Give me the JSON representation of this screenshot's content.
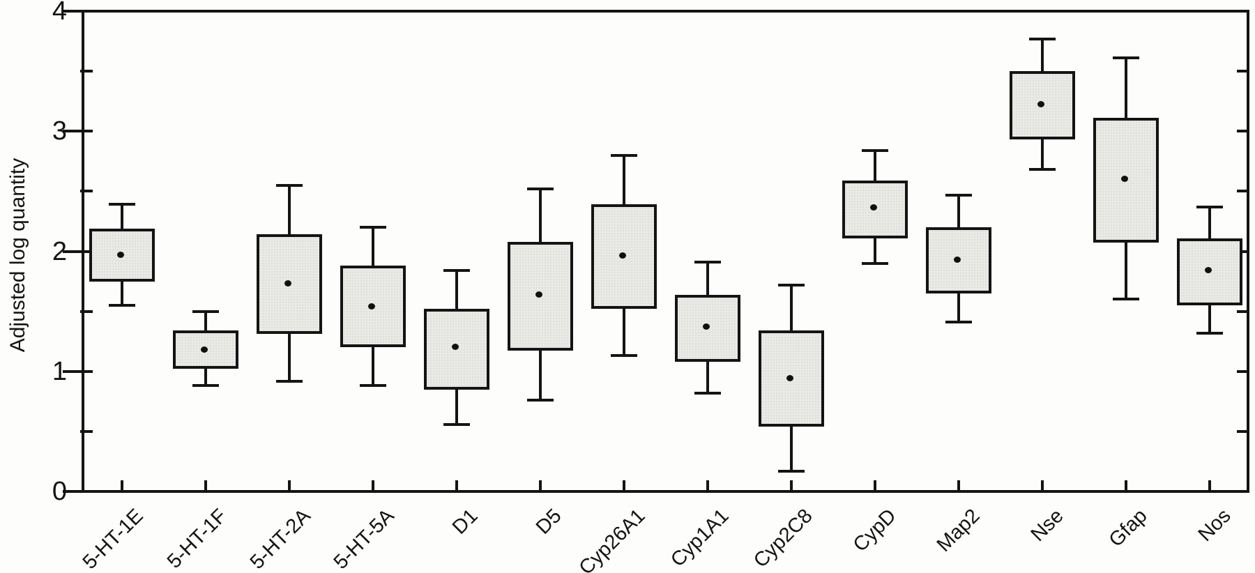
{
  "figure": {
    "background_color": "#fdfdfb",
    "line_color": "#141414",
    "box_fill_color": "#e9e9e6"
  },
  "chart_data": {
    "type": "box",
    "title": "",
    "xlabel": "",
    "ylabel": "Adjusted log quantity",
    "ylim": [
      0,
      4
    ],
    "grid": false,
    "frame": true,
    "y_major_ticks": [
      0,
      1,
      2,
      3,
      4
    ],
    "y_major_tick_labels": [
      "0",
      "1",
      "2",
      "3",
      "4"
    ],
    "y_minor_ticks": [
      0.5,
      1.5,
      2.5,
      3.5
    ],
    "right_axis_ticks": [
      0.5,
      1.0,
      1.5,
      2.0,
      2.5,
      3.0,
      3.5
    ],
    "marker_meaning": "mean-dot",
    "categories": [
      "5-HT-1E",
      "5-HT-1F",
      "5-HT-2A",
      "5-HT-5A",
      "D1",
      "D5",
      "Cyp26A1",
      "Cyp1A1",
      "Cyp2C8",
      "CypD",
      "Map2",
      "Nse",
      "Gfap",
      "Nos"
    ],
    "series": [
      {
        "name": "5-HT-1E",
        "min": 1.55,
        "q1": 1.75,
        "mean": 1.97,
        "q3": 2.19,
        "max": 2.39
      },
      {
        "name": "5-HT-1F",
        "min": 0.88,
        "q1": 1.02,
        "mean": 1.18,
        "q3": 1.34,
        "max": 1.5
      },
      {
        "name": "5-HT-2A",
        "min": 0.92,
        "q1": 1.31,
        "mean": 1.73,
        "q3": 2.14,
        "max": 2.55
      },
      {
        "name": "5-HT-5A",
        "min": 0.88,
        "q1": 1.2,
        "mean": 1.54,
        "q3": 1.88,
        "max": 2.2
      },
      {
        "name": "D1",
        "min": 0.56,
        "q1": 0.85,
        "mean": 1.2,
        "q3": 1.52,
        "max": 1.84
      },
      {
        "name": "D5",
        "min": 0.76,
        "q1": 1.17,
        "mean": 1.64,
        "q3": 2.08,
        "max": 2.52
      },
      {
        "name": "Cyp26A1",
        "min": 1.13,
        "q1": 1.52,
        "mean": 1.96,
        "q3": 2.39,
        "max": 2.8
      },
      {
        "name": "Cyp1A1",
        "min": 0.82,
        "q1": 1.08,
        "mean": 1.37,
        "q3": 1.64,
        "max": 1.91
      },
      {
        "name": "Cyp2C8",
        "min": 0.17,
        "q1": 0.54,
        "mean": 0.94,
        "q3": 1.34,
        "max": 1.72
      },
      {
        "name": "CypD",
        "min": 1.9,
        "q1": 2.11,
        "mean": 2.36,
        "q3": 2.59,
        "max": 2.84
      },
      {
        "name": "Map2",
        "min": 1.41,
        "q1": 1.65,
        "mean": 1.93,
        "q3": 2.2,
        "max": 2.47
      },
      {
        "name": "Nse",
        "min": 2.68,
        "q1": 2.93,
        "mean": 3.22,
        "q3": 3.5,
        "max": 3.77
      },
      {
        "name": "Gfap",
        "min": 1.6,
        "q1": 2.07,
        "mean": 2.6,
        "q3": 3.11,
        "max": 3.61
      },
      {
        "name": "Nos",
        "min": 1.32,
        "q1": 1.55,
        "mean": 1.84,
        "q3": 2.11,
        "max": 2.37
      }
    ]
  }
}
